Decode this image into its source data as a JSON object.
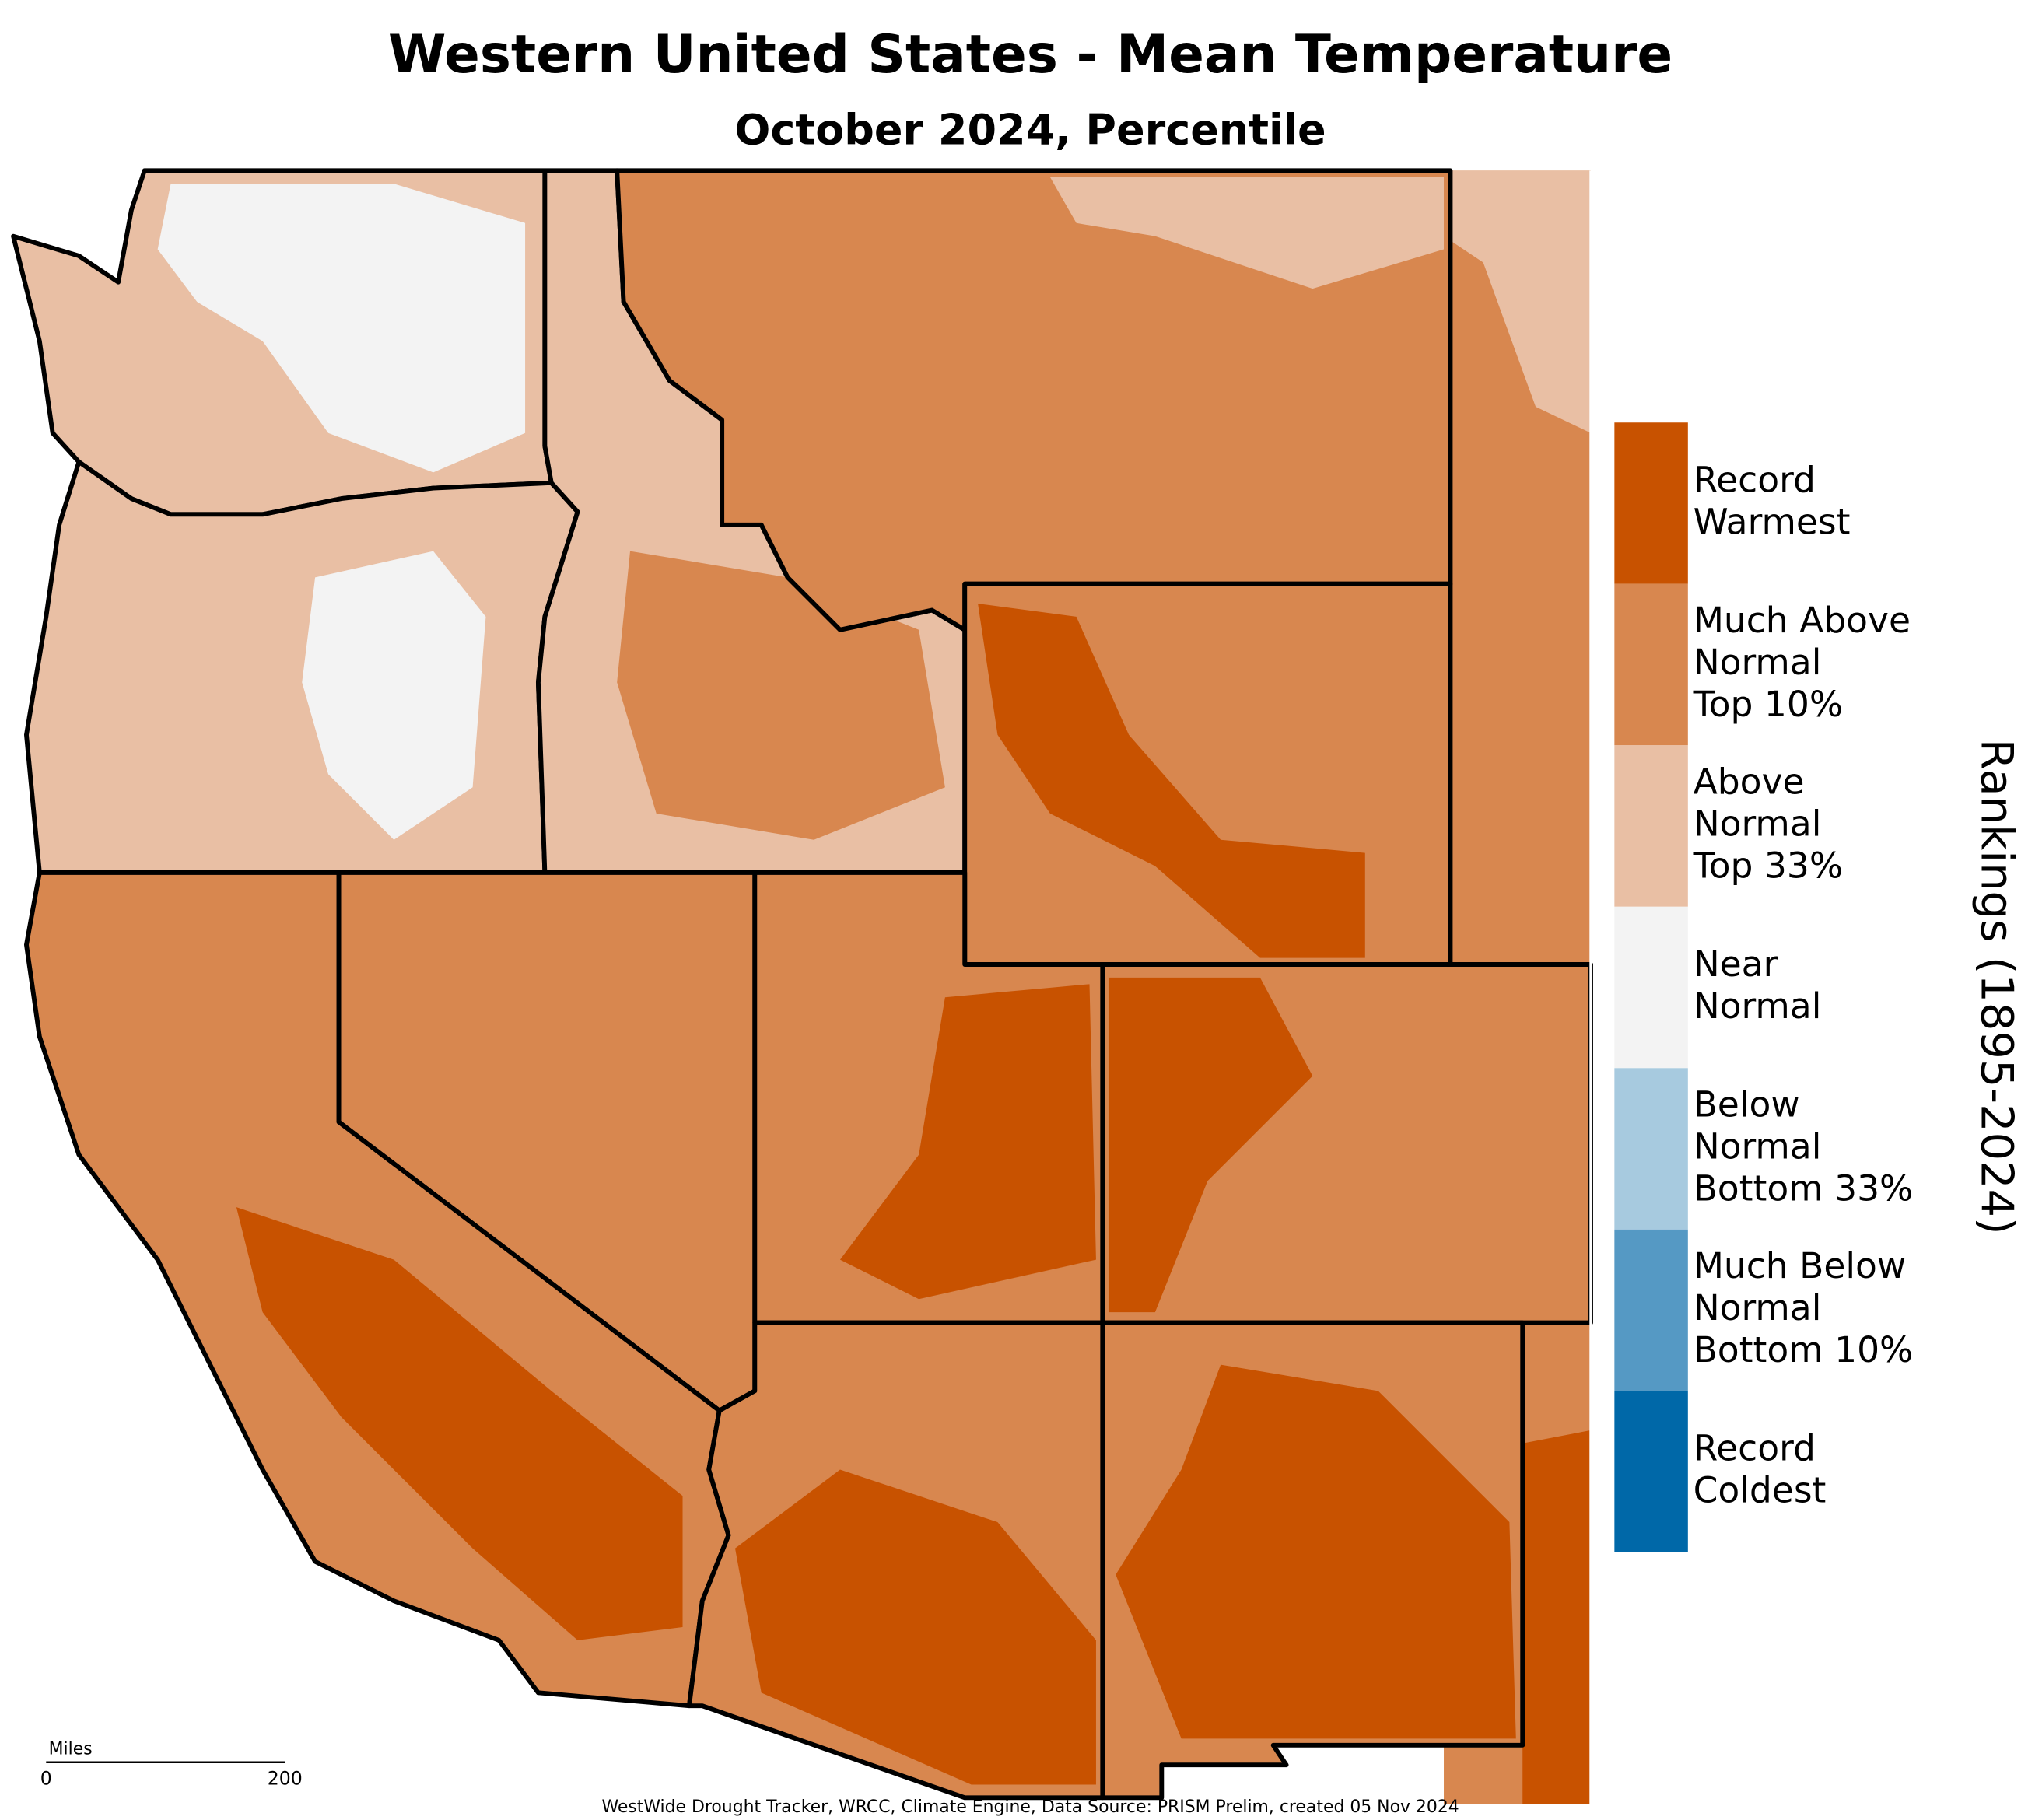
{
  "header": {
    "title": "Western United States - Mean Temperature",
    "subtitle": "October 2024, Percentile"
  },
  "legend": {
    "title": "Rankings (1895-2024)",
    "items": [
      {
        "label": [
          "Record",
          "Warmest"
        ],
        "color": "#c85200"
      },
      {
        "label": [
          "Much Above",
          "Normal",
          "Top 10%"
        ],
        "color": "#d8874f"
      },
      {
        "label": [
          "Above",
          "Normal",
          "Top 33%"
        ],
        "color": "#e9bfa4"
      },
      {
        "label": [
          "Near",
          "Normal"
        ],
        "color": "#f3f3f3"
      },
      {
        "label": [
          "Below",
          "Normal",
          "Bottom 33%"
        ],
        "color": "#a7cadf"
      },
      {
        "label": [
          "Much Below",
          "Normal",
          "Bottom 10%"
        ],
        "color": "#5599c4"
      },
      {
        "label": [
          "Record",
          "Coldest"
        ],
        "color": "#0068a8"
      }
    ]
  },
  "scale_bar": {
    "unit": "Miles",
    "start": "0",
    "end": "200"
  },
  "credit": "WestWide Drought Tracker, WRCC, Climate Engine, Data Source: PRISM Prelim, created 05 Nov 2024"
}
